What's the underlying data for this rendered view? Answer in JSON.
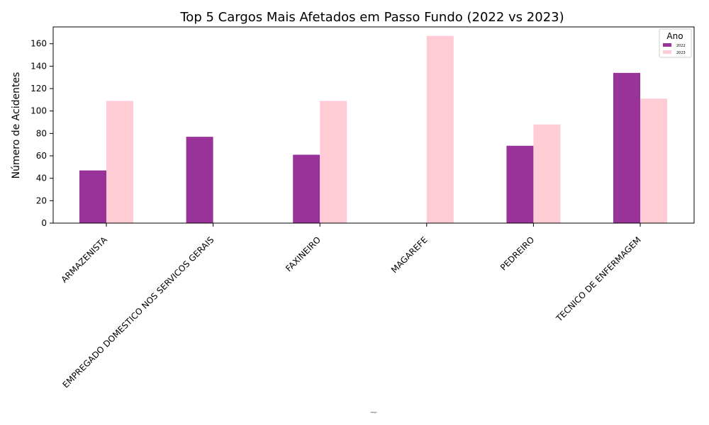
{
  "chart_data": {
    "type": "bar",
    "title": "Top 5 Cargos Mais Afetados em Passo Fundo (2022 vs 2023)",
    "xlabel": "Cargo",
    "ylabel": "Número de Acidentes",
    "categories": [
      "ARMAZENISTA",
      "EMPREGADO DOMESTICO NOS SERVICOS GERAIS",
      "FAXINEIRO",
      "MAGAREFE",
      "PEDREIRO",
      "TECNICO DE ENFERMAGEM"
    ],
    "series": [
      {
        "name": "2022",
        "color": "#993399",
        "values": [
          47,
          77,
          61,
          0,
          69,
          134
        ]
      },
      {
        "name": "2023",
        "color": "#ffccd5",
        "values": [
          109,
          0,
          109,
          167,
          88,
          111
        ]
      }
    ],
    "ylim": [
      0,
      175
    ],
    "yticks": [
      0,
      20,
      40,
      60,
      80,
      100,
      120,
      140,
      160
    ],
    "grid": false,
    "legend": {
      "title": "Ano",
      "position": "top-right"
    }
  }
}
